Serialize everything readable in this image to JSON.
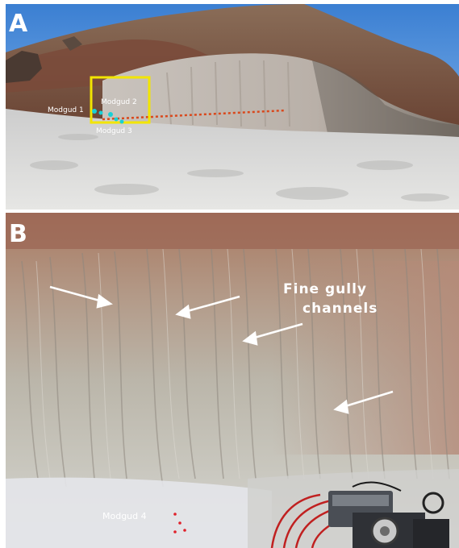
{
  "panel_a": {
    "letter": "A",
    "labels": {
      "modgud1": "Modgud 1",
      "modgud2": "Modgud 2",
      "modgud3": "Modgud 3"
    },
    "highlight_color": "#f2e500",
    "transect_color": "#d9481c",
    "marker_color": "#19d0d6"
  },
  "panel_b": {
    "letter": "B",
    "annotation_line1": "Fine gully",
    "annotation_line2": "channels",
    "label_modgud4": "Modgud 4",
    "marker_color": "#e0202a"
  }
}
